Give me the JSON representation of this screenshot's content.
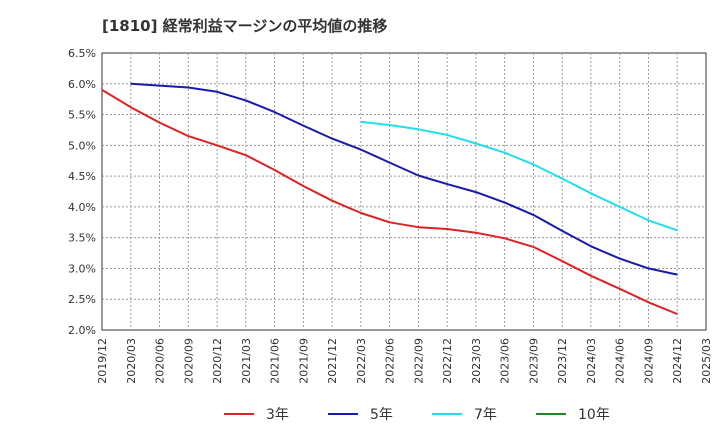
{
  "chart_data": {
    "type": "line",
    "title": "[1810]  経常利益マージンの平均値の推移",
    "xlabel": "",
    "ylabel": "",
    "x_ticks": [
      "2019/12",
      "2020/03",
      "2020/06",
      "2020/09",
      "2020/12",
      "2021/03",
      "2021/06",
      "2021/09",
      "2021/12",
      "2022/03",
      "2022/06",
      "2022/09",
      "2022/12",
      "2023/03",
      "2023/06",
      "2023/09",
      "2023/12",
      "2024/03",
      "2024/06",
      "2024/09",
      "2024/12",
      "2025/03"
    ],
    "y_ticks": [
      "2.0%",
      "2.5%",
      "3.0%",
      "3.5%",
      "4.0%",
      "4.5%",
      "5.0%",
      "5.5%",
      "6.0%",
      "6.5%"
    ],
    "ylim": [
      2.0,
      6.5
    ],
    "grid": true,
    "legend_position": "bottom",
    "series": [
      {
        "name": "3年",
        "color": "#dd2222",
        "x": [
          "2019/12",
          "2020/03",
          "2020/06",
          "2020/09",
          "2020/12",
          "2021/03",
          "2021/06",
          "2021/09",
          "2021/12",
          "2022/03",
          "2022/06",
          "2022/09",
          "2022/12",
          "2023/03",
          "2023/06",
          "2023/09",
          "2023/12",
          "2024/03",
          "2024/06",
          "2024/09",
          "2024/12"
        ],
        "values": [
          5.9,
          5.62,
          5.37,
          5.15,
          5.0,
          4.84,
          4.6,
          4.34,
          4.1,
          3.9,
          3.75,
          3.67,
          3.64,
          3.58,
          3.49,
          3.35,
          3.12,
          2.88,
          2.67,
          2.45,
          2.26
        ]
      },
      {
        "name": "5年",
        "color": "#1a1aaa",
        "x": [
          "2020/03",
          "2020/06",
          "2020/09",
          "2020/12",
          "2021/03",
          "2021/06",
          "2021/09",
          "2021/12",
          "2022/03",
          "2022/06",
          "2022/09",
          "2022/12",
          "2023/03",
          "2023/06",
          "2023/09",
          "2023/12",
          "2024/03",
          "2024/06",
          "2024/09",
          "2024/12"
        ],
        "values": [
          6.0,
          5.97,
          5.94,
          5.87,
          5.73,
          5.54,
          5.32,
          5.11,
          4.93,
          4.72,
          4.51,
          4.37,
          4.24,
          4.07,
          3.87,
          3.61,
          3.36,
          3.16,
          3.0,
          2.9
        ]
      },
      {
        "name": "7年",
        "color": "#22ddee",
        "x": [
          "2022/03",
          "2022/06",
          "2022/09",
          "2022/12",
          "2023/03",
          "2023/06",
          "2023/09",
          "2023/12",
          "2024/03",
          "2024/06",
          "2024/09",
          "2024/12"
        ],
        "values": [
          5.38,
          5.33,
          5.26,
          5.17,
          5.03,
          4.88,
          4.69,
          4.46,
          4.22,
          4.0,
          3.78,
          3.62
        ]
      },
      {
        "name": "10年",
        "color": "#228822",
        "x": [],
        "values": []
      }
    ]
  }
}
